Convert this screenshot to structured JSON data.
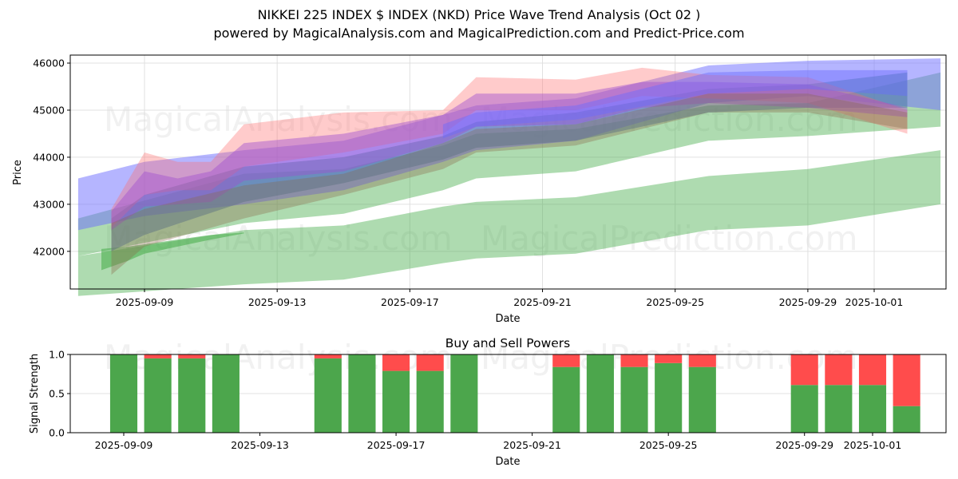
{
  "header": {
    "title": "NIKKEI 225 INDEX $ INDEX (NKD) Price Wave Trend Analysis (Oct 02 )",
    "subtitle": "powered by MagicalAnalysis.com and MagicalPrediction.com and Predict-Price.com"
  },
  "watermarks": [
    "MagicalAnalysis.com",
    "MagicalPrediction.com"
  ],
  "colors": {
    "green": "#4caf50",
    "blue": "#6b6bff",
    "red": "#ff6b6b",
    "purple": "#a050d0",
    "steel": "#4a7aa0",
    "buy": "#4ca64c",
    "sell": "#ff4c4c"
  },
  "chart_data": [
    {
      "type": "area",
      "title": "",
      "xlabel": "Date",
      "ylabel": "Price",
      "ylim": [
        41200,
        46170
      ],
      "xlim": [
        "2025-09-06.8",
        "2025-10-03.2"
      ],
      "grid": true,
      "yticks": [
        42000,
        43000,
        44000,
        45000,
        46000
      ],
      "xticks": [
        "2025-09-09",
        "2025-09-13",
        "2025-09-17",
        "2025-09-21",
        "2025-09-25",
        "2025-09-29",
        "2025-10-01"
      ],
      "series": [
        {
          "name": "green-low-band",
          "color": "green",
          "opacity": 0.45,
          "x": [
            "2025-09-07",
            "2025-09-12",
            "2025-09-15",
            "2025-09-18",
            "2025-09-19",
            "2025-09-22",
            "2025-09-26",
            "2025-09-29",
            "2025-10-03"
          ],
          "upper": [
            41900,
            42450,
            42550,
            42950,
            43050,
            43150,
            43600,
            43750,
            44150
          ],
          "lower": [
            41050,
            41300,
            41400,
            41750,
            41850,
            41950,
            42450,
            42550,
            43000
          ]
        },
        {
          "name": "green-mid-band",
          "color": "green",
          "opacity": 0.45,
          "x": [
            "2025-09-07",
            "2025-09-12",
            "2025-09-15",
            "2025-09-18",
            "2025-09-19",
            "2025-09-22",
            "2025-09-26",
            "2025-09-29",
            "2025-10-03"
          ],
          "upper": [
            42700,
            43650,
            43750,
            44250,
            44500,
            44600,
            45100,
            45150,
            45800
          ],
          "lower": [
            41900,
            42600,
            42800,
            43300,
            43550,
            43700,
            44350,
            44450,
            44650
          ]
        },
        {
          "name": "green-short-band",
          "color": "green",
          "opacity": 0.6,
          "x": [
            "2025-09-07.7",
            "2025-09-08.5",
            "2025-09-09",
            "2025-09-10",
            "2025-09-11",
            "2025-09-12"
          ],
          "upper": [
            42050,
            42100,
            42150,
            42250,
            42350,
            42400
          ],
          "lower": [
            41600,
            41800,
            41950,
            42100,
            42250,
            42380
          ]
        },
        {
          "name": "blue-wide-band",
          "color": "blue",
          "opacity": 0.5,
          "x": [
            "2025-09-07",
            "2025-09-09",
            "2025-09-12",
            "2025-09-15",
            "2025-09-18",
            "2025-09-19",
            "2025-09-22",
            "2025-09-26",
            "2025-09-29",
            "2025-10-03"
          ],
          "upper": [
            43550,
            43900,
            44150,
            44350,
            44900,
            45100,
            45250,
            45950,
            46050,
            46100
          ],
          "lower": [
            42450,
            42750,
            43000,
            43300,
            43900,
            44150,
            44350,
            45150,
            45300,
            45000
          ]
        },
        {
          "name": "steel-band",
          "color": "steel",
          "opacity": 0.5,
          "x": [
            "2025-09-08",
            "2025-09-09",
            "2025-09-12",
            "2025-09-15",
            "2025-09-18",
            "2025-09-19",
            "2025-09-22",
            "2025-09-26",
            "2025-09-29",
            "2025-10-02"
          ],
          "upper": [
            42700,
            43200,
            43800,
            44000,
            44450,
            44750,
            44950,
            45450,
            45550,
            45800
          ],
          "lower": [
            42000,
            42350,
            43050,
            43450,
            43950,
            44200,
            44350,
            44950,
            45050,
            45050
          ]
        },
        {
          "name": "red-band",
          "color": "red",
          "opacity": 0.35,
          "x": [
            "2025-09-08",
            "2025-09-09",
            "2025-09-10",
            "2025-09-11",
            "2025-09-12",
            "2025-09-15",
            "2025-09-18",
            "2025-09-19",
            "2025-09-22",
            "2025-09-24",
            "2025-09-26",
            "2025-09-29",
            "2025-10-02"
          ],
          "upper": [
            42900,
            44100,
            43900,
            43900,
            44700,
            44950,
            45000,
            45700,
            45650,
            45900,
            45750,
            45700,
            45000
          ],
          "lower": [
            42500,
            43200,
            43300,
            43300,
            43800,
            44100,
            44500,
            45000,
            45000,
            45300,
            45250,
            45150,
            44500
          ]
        },
        {
          "name": "purple-band",
          "color": "purple",
          "opacity": 0.45,
          "x": [
            "2025-09-08",
            "2025-09-09",
            "2025-09-10",
            "2025-09-11",
            "2025-09-12",
            "2025-09-15",
            "2025-09-18",
            "2025-09-19",
            "2025-09-22",
            "2025-09-24",
            "2025-09-26",
            "2025-09-29",
            "2025-10-02"
          ],
          "upper": [
            42850,
            43700,
            43550,
            43700,
            44300,
            44500,
            44900,
            45350,
            45350,
            45600,
            45600,
            45550,
            45050
          ],
          "lower": [
            42450,
            42950,
            43000,
            43050,
            43500,
            43700,
            44300,
            44650,
            44700,
            45050,
            45150,
            45050,
            44850
          ]
        },
        {
          "name": "brown-band",
          "color": "#8a6a4a",
          "opacity": 0.35,
          "x": [
            "2025-09-08",
            "2025-09-09",
            "2025-09-12",
            "2025-09-15",
            "2025-09-18",
            "2025-09-19",
            "2025-09-22",
            "2025-09-26",
            "2025-09-29",
            "2025-10-02"
          ],
          "upper": [
            42600,
            42900,
            43400,
            43650,
            44300,
            44600,
            44700,
            45350,
            45350,
            44950
          ],
          "lower": [
            41500,
            42100,
            42700,
            43200,
            43750,
            44100,
            44250,
            44950,
            44950,
            44600
          ]
        },
        {
          "name": "blue-upper-band",
          "color": "blue",
          "opacity": 0.45,
          "x": [
            "2025-09-18",
            "2025-09-19",
            "2025-09-22",
            "2025-09-26",
            "2025-09-29",
            "2025-10-02"
          ],
          "upper": [
            44700,
            44950,
            45100,
            45800,
            45850,
            45850
          ],
          "lower": [
            44400,
            44650,
            44800,
            45350,
            45450,
            45300
          ]
        }
      ]
    },
    {
      "type": "bar",
      "title": "Buy and Sell Powers",
      "xlabel": "Date",
      "ylabel": "Signal Strength",
      "ylim": [
        0,
        1
      ],
      "yticks": [
        "0.0",
        "0.5",
        "1.0"
      ],
      "xticks": [
        "2025-09-09",
        "2025-09-13",
        "2025-09-17",
        "2025-09-21",
        "2025-09-25",
        "2025-09-29",
        "2025-10-01"
      ],
      "grid": true,
      "series": [
        {
          "name": "Buy",
          "color": "buy"
        },
        {
          "name": "Sell",
          "color": "sell"
        }
      ],
      "categories": [
        "2025-09-09",
        "2025-09-10",
        "2025-09-11",
        "2025-09-12",
        "2025-09-15",
        "2025-09-16",
        "2025-09-17",
        "2025-09-18",
        "2025-09-19",
        "2025-09-22",
        "2025-09-23",
        "2025-09-24",
        "2025-09-25",
        "2025-09-26",
        "2025-09-29",
        "2025-09-30",
        "2025-10-01",
        "2025-10-02"
      ],
      "buy": [
        1.0,
        0.95,
        0.95,
        1.0,
        0.95,
        1.0,
        0.79,
        0.79,
        1.0,
        0.84,
        1.0,
        0.84,
        0.89,
        0.84,
        0.61,
        0.61,
        0.61,
        0.34
      ],
      "sell": [
        0.0,
        0.05,
        0.05,
        0.0,
        0.05,
        0.0,
        0.21,
        0.21,
        0.0,
        0.16,
        0.0,
        0.16,
        0.11,
        0.16,
        0.39,
        0.39,
        0.39,
        0.66
      ]
    }
  ]
}
